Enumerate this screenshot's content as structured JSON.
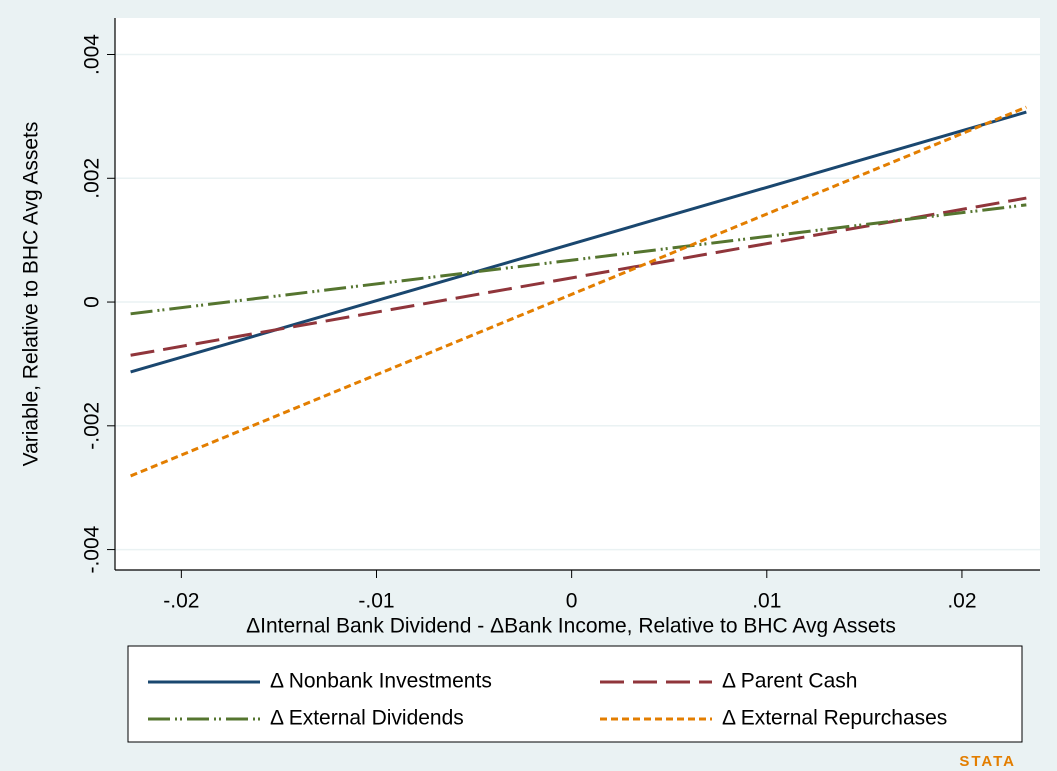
{
  "chart_data": {
    "type": "line",
    "x_label": "ΔInternal Bank Dividend - ΔBank Income, Relative to BHC Avg Assets",
    "y_label": "Variable, Relative to BHC Avg Assets",
    "x": [
      -0.0226,
      0.0233
    ],
    "series": [
      {
        "name": "Δ Nonbank Investments",
        "color": "#1a476f",
        "dash": "solid",
        "values": [
          -0.00113,
          0.00307
        ]
      },
      {
        "name": "Δ Parent Cash",
        "color": "#90353b",
        "dash": "longdash",
        "values": [
          -0.00086,
          0.00168
        ]
      },
      {
        "name": "Δ External Dividends",
        "color": "#55752f",
        "dash": "dashdot",
        "values": [
          -0.00019,
          0.00157
        ]
      },
      {
        "name": "Δ External Repurchases",
        "color": "#e37e00",
        "dash": "shortdash",
        "values": [
          -0.00281,
          0.00315
        ]
      }
    ],
    "xlim": [
      -0.0234,
      0.024
    ],
    "ylim": [
      -0.00433,
      0.00459
    ],
    "xticks": [
      {
        "value": -0.02,
        "label": "-.02"
      },
      {
        "value": -0.01,
        "label": "-.01"
      },
      0,
      {
        "value": 0.01,
        "label": ".01"
      },
      {
        "value": 0.02,
        "label": ".02"
      }
    ],
    "yticks": [
      {
        "value": -0.004,
        "label": "-.004"
      },
      {
        "value": -0.002,
        "label": "-.002"
      },
      0,
      {
        "value": 0.002,
        "label": ".002"
      },
      {
        "value": 0.004,
        "label": ".004"
      }
    ],
    "grid": true,
    "legend": "bottom",
    "logo": "STATA"
  }
}
